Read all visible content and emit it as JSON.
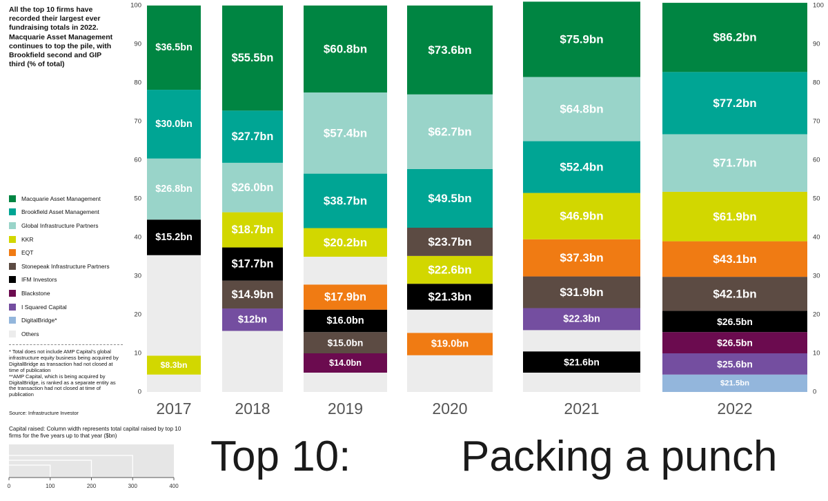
{
  "intro": "All the top 10 firms have recorded their largest ever fundraising totals in 2022. Macquarie Asset Management continues to top the pile, with Brookfield second and GIP third (% of total)",
  "legend": [
    {
      "label": "Macquarie Asset Management",
      "color": "#008542"
    },
    {
      "label": "Brookfield Asset Management",
      "color": "#00a594"
    },
    {
      "label": "Global Infrastructure Partners",
      "color": "#99d4c9"
    },
    {
      "label": "KKR",
      "color": "#d2d700"
    },
    {
      "label": "EQT",
      "color": "#f07b13"
    },
    {
      "label": "Stonepeak Infrastructure Partners",
      "color": "#5c4b43"
    },
    {
      "label": "IFM Investors",
      "color": "#000000"
    },
    {
      "label": "Blackstone",
      "color": "#6b0b4f"
    },
    {
      "label": "I Squared Capital",
      "color": "#744ea0"
    },
    {
      "label": "DigitalBridge*",
      "color": "#93b6dc"
    },
    {
      "label": "Others",
      "color": "#ececec"
    }
  ],
  "footnotes": [
    "* Total does not include AMP Capital's global infrastructure equity business being acquired by DigitalBridge as transaction had not closed at time of publication",
    "**AMP Capital, which is being acquired by DigitalBridge, is ranked as a separate entity as the transaction had not closed at time of publication"
  ],
  "source": "Source: Infrastructure Investor",
  "mini_chart": {
    "title": "Capital raised: Column width represents total capital raised by top 10 firms for the five years up to that year ($bn)",
    "ticks": [
      0,
      100,
      200,
      300,
      400
    ],
    "xlim": [
      0,
      400
    ]
  },
  "title_left": "Top 10:",
  "title_right": "Packing a punch",
  "chart_data": {
    "type": "bar",
    "stacked": true,
    "variable_width": true,
    "ylim": [
      0,
      100
    ],
    "yticks": [
      0,
      10,
      20,
      30,
      40,
      50,
      60,
      70,
      80,
      90,
      100
    ],
    "categories": [
      "2017",
      "2018",
      "2019",
      "2020",
      "2021",
      "2022"
    ],
    "columns": [
      {
        "year": "2017",
        "segments": [
          {
            "firm": "Others",
            "share": 4.5
          },
          {
            "firm": "KKR",
            "share": 4.9,
            "label": "$8.3bn"
          },
          {
            "firm": "Others",
            "share": 26.0
          },
          {
            "firm": "IFM Investors",
            "share": 9.2,
            "label": "$15.2bn"
          },
          {
            "firm": "Global Infrastructure Partners",
            "share": 15.8,
            "label": "$26.8bn"
          },
          {
            "firm": "Brookfield Asset Management",
            "share": 17.8,
            "label": "$30.0bn"
          },
          {
            "firm": "Macquarie Asset Management",
            "share": 21.8,
            "label": "$36.5bn"
          }
        ]
      },
      {
        "year": "2018",
        "segments": [
          {
            "firm": "Others",
            "share": 15.8
          },
          {
            "firm": "I Squared Capital",
            "share": 5.8,
            "label": "$12bn"
          },
          {
            "firm": "Stonepeak Infrastructure Partners",
            "share": 7.2,
            "label": "$14.9bn"
          },
          {
            "firm": "IFM Investors",
            "share": 8.6,
            "label": "$17.7bn"
          },
          {
            "firm": "KKR",
            "share": 9.1,
            "label": "$18.7bn"
          },
          {
            "firm": "Global Infrastructure Partners",
            "share": 12.8,
            "label": "$26.0bn"
          },
          {
            "firm": "Brookfield Asset Management",
            "share": 13.5,
            "label": "$27.7bn"
          },
          {
            "firm": "Macquarie Asset Management",
            "share": 27.2,
            "label": "$55.5bn"
          }
        ]
      },
      {
        "year": "2019",
        "segments": [
          {
            "firm": "Others",
            "share": 5.0
          },
          {
            "firm": "Blackstone",
            "share": 5.0,
            "label": "$14.0bn"
          },
          {
            "firm": "Stonepeak Infrastructure Partners",
            "share": 5.5,
            "label": "$15.0bn"
          },
          {
            "firm": "IFM Investors",
            "share": 5.8,
            "label": "$16.0bn"
          },
          {
            "firm": "EQT",
            "share": 6.5,
            "label": "$17.9bn"
          },
          {
            "firm": "Others",
            "share": 7.2
          },
          {
            "firm": "KKR",
            "share": 7.4,
            "label": "$20.2bn"
          },
          {
            "firm": "Brookfield Asset Management",
            "share": 14.1,
            "label": "$38.7bn"
          },
          {
            "firm": "Global Infrastructure Partners",
            "share": 21.0,
            "label": "$57.4bn"
          },
          {
            "firm": "Macquarie Asset Management",
            "share": 22.5,
            "label": "$60.8bn"
          }
        ]
      },
      {
        "year": "2020",
        "segments": [
          {
            "firm": "Others",
            "share": 9.5
          },
          {
            "firm": "EQT",
            "share": 5.8,
            "label": "$19.0bn"
          },
          {
            "firm": "Others",
            "share": 6.0
          },
          {
            "firm": "IFM Investors",
            "share": 6.7,
            "label": "$21.3bn"
          },
          {
            "firm": "KKR",
            "share": 7.2,
            "label": "$22.6bn"
          },
          {
            "firm": "Stonepeak Infrastructure Partners",
            "share": 7.3,
            "label": "$23.7bn"
          },
          {
            "firm": "Brookfield Asset Management",
            "share": 15.2,
            "label": "$49.5bn"
          },
          {
            "firm": "Global Infrastructure Partners",
            "share": 19.3,
            "label": "$62.7bn"
          },
          {
            "firm": "Macquarie Asset Management",
            "share": 23.0,
            "label": "$73.6bn"
          }
        ]
      },
      {
        "year": "2021",
        "segments": [
          {
            "firm": "Others",
            "share": 5.0
          },
          {
            "firm": "IFM Investors",
            "share": 5.5,
            "label": "$21.6bn"
          },
          {
            "firm": "Others",
            "share": 5.5
          },
          {
            "firm": "I Squared Capital",
            "share": 5.7,
            "label": "$22.3bn"
          },
          {
            "firm": "Stonepeak Infrastructure Partners",
            "share": 8.2,
            "label": "$31.9bn"
          },
          {
            "firm": "EQT",
            "share": 9.6,
            "label": "$37.3bn"
          },
          {
            "firm": "KKR",
            "share": 12.0,
            "label": "$46.9bn"
          },
          {
            "firm": "Brookfield Asset Management",
            "share": 13.4,
            "label": "$52.4bn"
          },
          {
            "firm": "Global Infrastructure Partners",
            "share": 16.6,
            "label": "$64.8bn"
          },
          {
            "firm": "Macquarie Asset Management",
            "share": 19.5,
            "label": "$75.9bn"
          }
        ]
      },
      {
        "year": "2022",
        "segments": [
          {
            "firm": "DigitalBridge*",
            "share": 4.5,
            "label": "$21.5bn"
          },
          {
            "firm": "I Squared Capital",
            "share": 5.5,
            "label": "$25.6bn"
          },
          {
            "firm": "Blackstone",
            "share": 5.5,
            "label": "$26.5bn"
          },
          {
            "firm": "IFM Investors",
            "share": 5.5,
            "label": "$26.5bn"
          },
          {
            "firm": "Stonepeak Infrastructure Partners",
            "share": 8.8,
            "label": "$42.1bn"
          },
          {
            "firm": "EQT",
            "share": 9.2,
            "label": "$43.1bn"
          },
          {
            "firm": "KKR",
            "share": 12.8,
            "label": "$61.9bn"
          },
          {
            "firm": "Global Infrastructure Partners",
            "share": 14.9,
            "label": "$71.7bn"
          },
          {
            "firm": "Brookfield Asset Management",
            "share": 16.1,
            "label": "$77.2bn"
          },
          {
            "firm": "Macquarie Asset Management",
            "share": 17.9,
            "label": "$86.2bn"
          }
        ]
      }
    ]
  }
}
